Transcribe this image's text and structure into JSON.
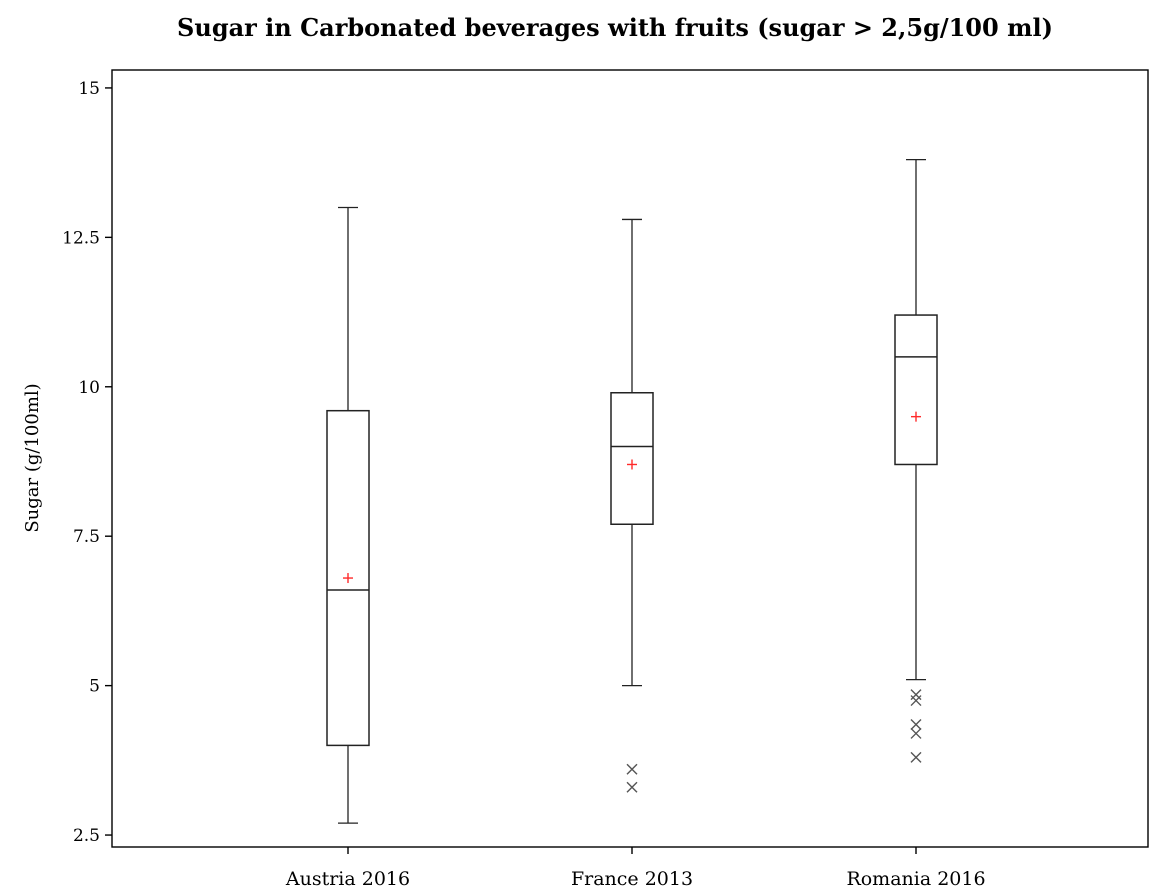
{
  "chart_data": {
    "type": "box",
    "title": "Sugar in Carbonated beverages with fruits (sugar  >  2,5g/100  ml)",
    "xlabel": "",
    "ylabel": "Sugar (g/100ml)",
    "ylim": [
      2.3,
      15.3
    ],
    "yticks": [
      2.5,
      5,
      7.5,
      10,
      12.5,
      15
    ],
    "ytick_labels": [
      "2.5",
      "5",
      "7.5",
      "10",
      "12.5",
      "15"
    ],
    "grid": false,
    "legend": "none",
    "colors": {
      "box": "#222222",
      "mean": "#ff2a2a",
      "outlier": "#555555"
    },
    "mean_marker": "plus",
    "outlier_marker": "cross",
    "categories": [
      "Austria 2016",
      "France 2013",
      "Romania 2016"
    ],
    "boxes": [
      {
        "category": "Austria 2016",
        "whisker_low": 2.7,
        "q1": 4.0,
        "median": 6.6,
        "q3": 9.6,
        "whisker_high": 13.0,
        "mean": 6.8,
        "outliers": []
      },
      {
        "category": "France 2013",
        "whisker_low": 5.0,
        "q1": 7.7,
        "median": 9.0,
        "q3": 9.9,
        "whisker_high": 12.8,
        "mean": 8.7,
        "outliers": [
          3.6,
          3.3
        ]
      },
      {
        "category": "Romania 2016",
        "whisker_low": 5.1,
        "q1": 8.7,
        "median": 10.5,
        "q3": 11.2,
        "whisker_high": 13.8,
        "mean": 9.5,
        "outliers": [
          4.85,
          4.75,
          4.35,
          4.2,
          3.8
        ]
      }
    ]
  }
}
